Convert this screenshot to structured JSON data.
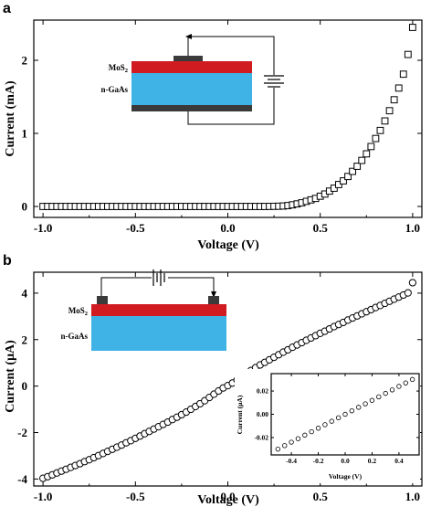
{
  "chart_data": [
    {
      "panel": "a",
      "type": "scatter",
      "marker": "square",
      "xlabel": "Voltage (V)",
      "ylabel": "Current (mA)",
      "xlim": [
        -1.05,
        1.05
      ],
      "ylim": [
        -0.15,
        2.55
      ],
      "xticks": [
        -1.0,
        -0.5,
        0.0,
        0.5,
        1.0
      ],
      "xtick_labels": [
        "-1.0",
        "-0.5",
        "0.0",
        "0.5",
        "1.0"
      ],
      "yticks": [
        0,
        1,
        2
      ],
      "ytick_labels": [
        "0",
        "1",
        "2"
      ],
      "series": [
        {
          "x": [
            -1.0,
            -0.975,
            -0.95,
            -0.925,
            -0.9,
            -0.875,
            -0.85,
            -0.825,
            -0.8,
            -0.775,
            -0.75,
            -0.725,
            -0.7,
            -0.675,
            -0.65,
            -0.625,
            -0.6,
            -0.575,
            -0.55,
            -0.525,
            -0.5,
            -0.475,
            -0.45,
            -0.425,
            -0.4,
            -0.375,
            -0.35,
            -0.325,
            -0.3,
            -0.275,
            -0.25,
            -0.225,
            -0.2,
            -0.175,
            -0.15,
            -0.125,
            -0.1,
            -0.075,
            -0.05,
            -0.025,
            0.0,
            0.025,
            0.05,
            0.075,
            0.1,
            0.125,
            0.15,
            0.175,
            0.2,
            0.225,
            0.25,
            0.275,
            0.3,
            0.325,
            0.35,
            0.375,
            0.4,
            0.425,
            0.45,
            0.475,
            0.5,
            0.525,
            0.55,
            0.575,
            0.6,
            0.625,
            0.65,
            0.675,
            0.7,
            0.725,
            0.75,
            0.775,
            0.8,
            0.825,
            0.85,
            0.875,
            0.9,
            0.925,
            0.95,
            0.975,
            1.0
          ],
          "y": [
            0,
            0,
            0,
            0,
            0,
            0,
            0,
            0,
            0,
            0,
            0,
            0,
            0,
            0,
            0,
            0,
            0,
            0,
            0,
            0,
            0,
            0,
            0,
            0,
            0,
            0,
            0,
            0,
            0,
            0,
            0,
            0,
            0,
            0,
            0,
            0,
            0,
            0,
            0,
            0,
            0,
            0,
            0,
            0,
            0,
            0,
            0,
            0,
            0,
            0.001,
            0.002,
            0.003,
            0.006,
            0.012,
            0.022,
            0.035,
            0.05,
            0.07,
            0.09,
            0.11,
            0.14,
            0.17,
            0.21,
            0.25,
            0.3,
            0.35,
            0.41,
            0.48,
            0.55,
            0.63,
            0.72,
            0.82,
            0.93,
            1.04,
            1.17,
            1.31,
            1.46,
            1.62,
            1.81,
            2.08,
            2.45
          ]
        }
      ],
      "inset_diagram": {
        "layers": [
          "MoS2",
          "n-GaAs"
        ]
      }
    },
    {
      "panel": "b",
      "type": "scatter",
      "marker": "circle",
      "xlabel": "Voltage (V)",
      "ylabel": "Current (μA)",
      "xlim": [
        -1.05,
        1.05
      ],
      "ylim": [
        -4.3,
        4.9
      ],
      "xticks": [
        -1.0,
        -0.5,
        0.0,
        0.5,
        1.0
      ],
      "xtick_labels": [
        "-1.0",
        "-0.5",
        "0.0",
        "0.5",
        "1.0"
      ],
      "yticks": [
        -4,
        -2,
        0,
        2,
        4
      ],
      "ytick_labels": [
        "-4",
        "-2",
        "0",
        "2",
        "4"
      ],
      "series": [
        {
          "x": [
            -1.0,
            -0.975,
            -0.95,
            -0.925,
            -0.9,
            -0.875,
            -0.85,
            -0.825,
            -0.8,
            -0.775,
            -0.75,
            -0.725,
            -0.7,
            -0.675,
            -0.65,
            -0.625,
            -0.6,
            -0.575,
            -0.55,
            -0.525,
            -0.5,
            -0.475,
            -0.45,
            -0.425,
            -0.4,
            -0.375,
            -0.35,
            -0.325,
            -0.3,
            -0.275,
            -0.25,
            -0.225,
            -0.2,
            -0.175,
            -0.15,
            -0.125,
            -0.1,
            -0.075,
            -0.05,
            -0.025,
            0.0,
            0.025,
            0.05,
            0.075,
            0.1,
            0.125,
            0.15,
            0.175,
            0.2,
            0.225,
            0.25,
            0.275,
            0.3,
            0.325,
            0.35,
            0.375,
            0.4,
            0.425,
            0.45,
            0.475,
            0.5,
            0.525,
            0.55,
            0.575,
            0.6,
            0.625,
            0.65,
            0.675,
            0.7,
            0.725,
            0.75,
            0.775,
            0.8,
            0.825,
            0.85,
            0.875,
            0.9,
            0.925,
            0.95,
            0.975,
            1.0
          ],
          "y": [
            -3.97,
            -3.9,
            -3.82,
            -3.74,
            -3.66,
            -3.58,
            -3.5,
            -3.42,
            -3.34,
            -3.25,
            -3.17,
            -3.08,
            -2.99,
            -2.9,
            -2.81,
            -2.72,
            -2.63,
            -2.54,
            -2.44,
            -2.35,
            -2.25,
            -2.15,
            -2.05,
            -1.95,
            -1.85,
            -1.75,
            -1.65,
            -1.55,
            -1.44,
            -1.34,
            -1.23,
            -1.12,
            -1.0,
            -0.88,
            -0.76,
            -0.63,
            -0.49,
            -0.35,
            -0.21,
            -0.08,
            0.02,
            0.13,
            0.26,
            0.4,
            0.54,
            0.67,
            0.79,
            0.91,
            1.02,
            1.13,
            1.24,
            1.35,
            1.46,
            1.56,
            1.67,
            1.77,
            1.87,
            1.97,
            2.07,
            2.17,
            2.27,
            2.36,
            2.46,
            2.56,
            2.65,
            2.74,
            2.84,
            2.93,
            3.02,
            3.11,
            3.2,
            3.29,
            3.38,
            3.47,
            3.56,
            3.65,
            3.74,
            3.83,
            3.92,
            4.01,
            4.45
          ]
        }
      ],
      "inset_diagram": {
        "layers": [
          "MoS2",
          "n-GaAs"
        ]
      },
      "inset_chart": {
        "type": "scatter",
        "marker": "circle",
        "xlabel": "Voltage (V)",
        "ylabel": "Current (μA)",
        "xlim": [
          -0.55,
          0.55
        ],
        "ylim": [
          -0.035,
          0.035
        ],
        "xticks": [
          -0.4,
          -0.2,
          0.0,
          0.2,
          0.4
        ],
        "xtick_labels": [
          "-0.4",
          "-0.2",
          "0.0",
          "0.2",
          "0.4"
        ],
        "yticks": [
          -0.02,
          0.0,
          0.02
        ],
        "ytick_labels": [
          "-0.02",
          "0.00",
          "0.02"
        ],
        "series": [
          {
            "x": [
              -0.5,
              -0.45,
              -0.4,
              -0.35,
              -0.3,
              -0.25,
              -0.2,
              -0.15,
              -0.1,
              -0.05,
              0.0,
              0.05,
              0.1,
              0.15,
              0.2,
              0.25,
              0.3,
              0.35,
              0.4,
              0.45,
              0.5
            ],
            "y": [
              -0.03,
              -0.027,
              -0.024,
              -0.021,
              -0.018,
              -0.015,
              -0.012,
              -0.009,
              -0.006,
              -0.003,
              0.0,
              0.003,
              0.006,
              0.009,
              0.012,
              0.015,
              0.018,
              0.021,
              0.024,
              0.027,
              0.03
            ]
          }
        ]
      }
    }
  ],
  "panels": {
    "a": {
      "label": "a"
    },
    "b": {
      "label": "b"
    }
  },
  "colors": {
    "mos2_layer": "#d01b20",
    "gaas_layer": "#3fb3e6",
    "contact": "#3a3a3a"
  }
}
